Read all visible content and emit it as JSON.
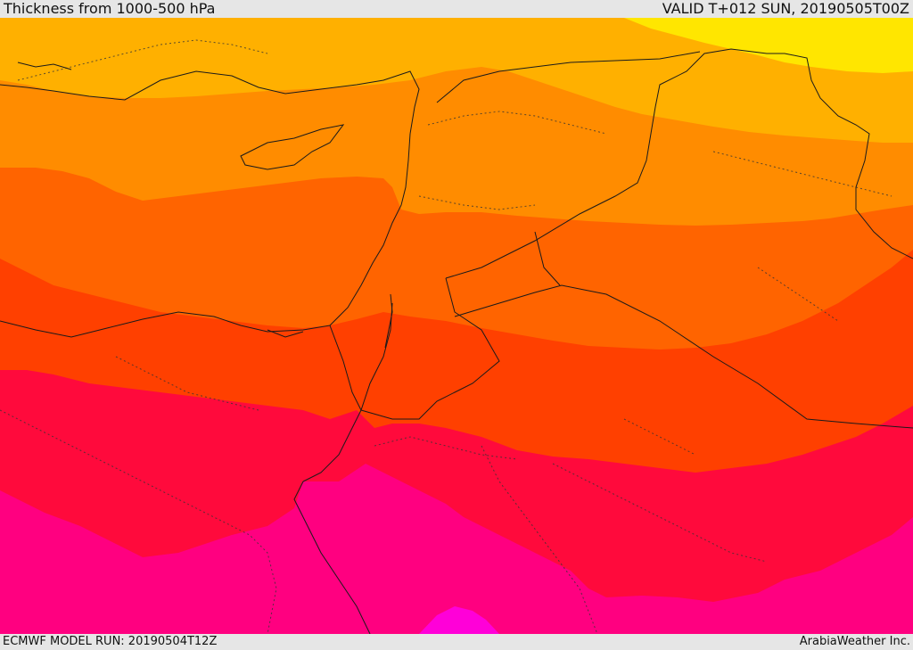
{
  "header": {
    "title": "Thickness from 1000-500 hPa",
    "valid": "VALID T+012 SUN, 20190505T00Z"
  },
  "footer": {
    "model_run": "ECMWF MODEL RUN: 20190504T12Z",
    "credit": "ArabiaWeather Inc."
  },
  "colors": {
    "band_1_yellow": "#ffe600",
    "band_2_amber": "#ffb000",
    "band_3_orange": "#ff8c00",
    "band_4_dark_orange": "#ff6400",
    "band_5_red_orange": "#ff4000",
    "band_6_red": "#ff0a3c",
    "band_7_magenta": "#ff0080",
    "band_8_violet": "#ff00d8"
  }
}
